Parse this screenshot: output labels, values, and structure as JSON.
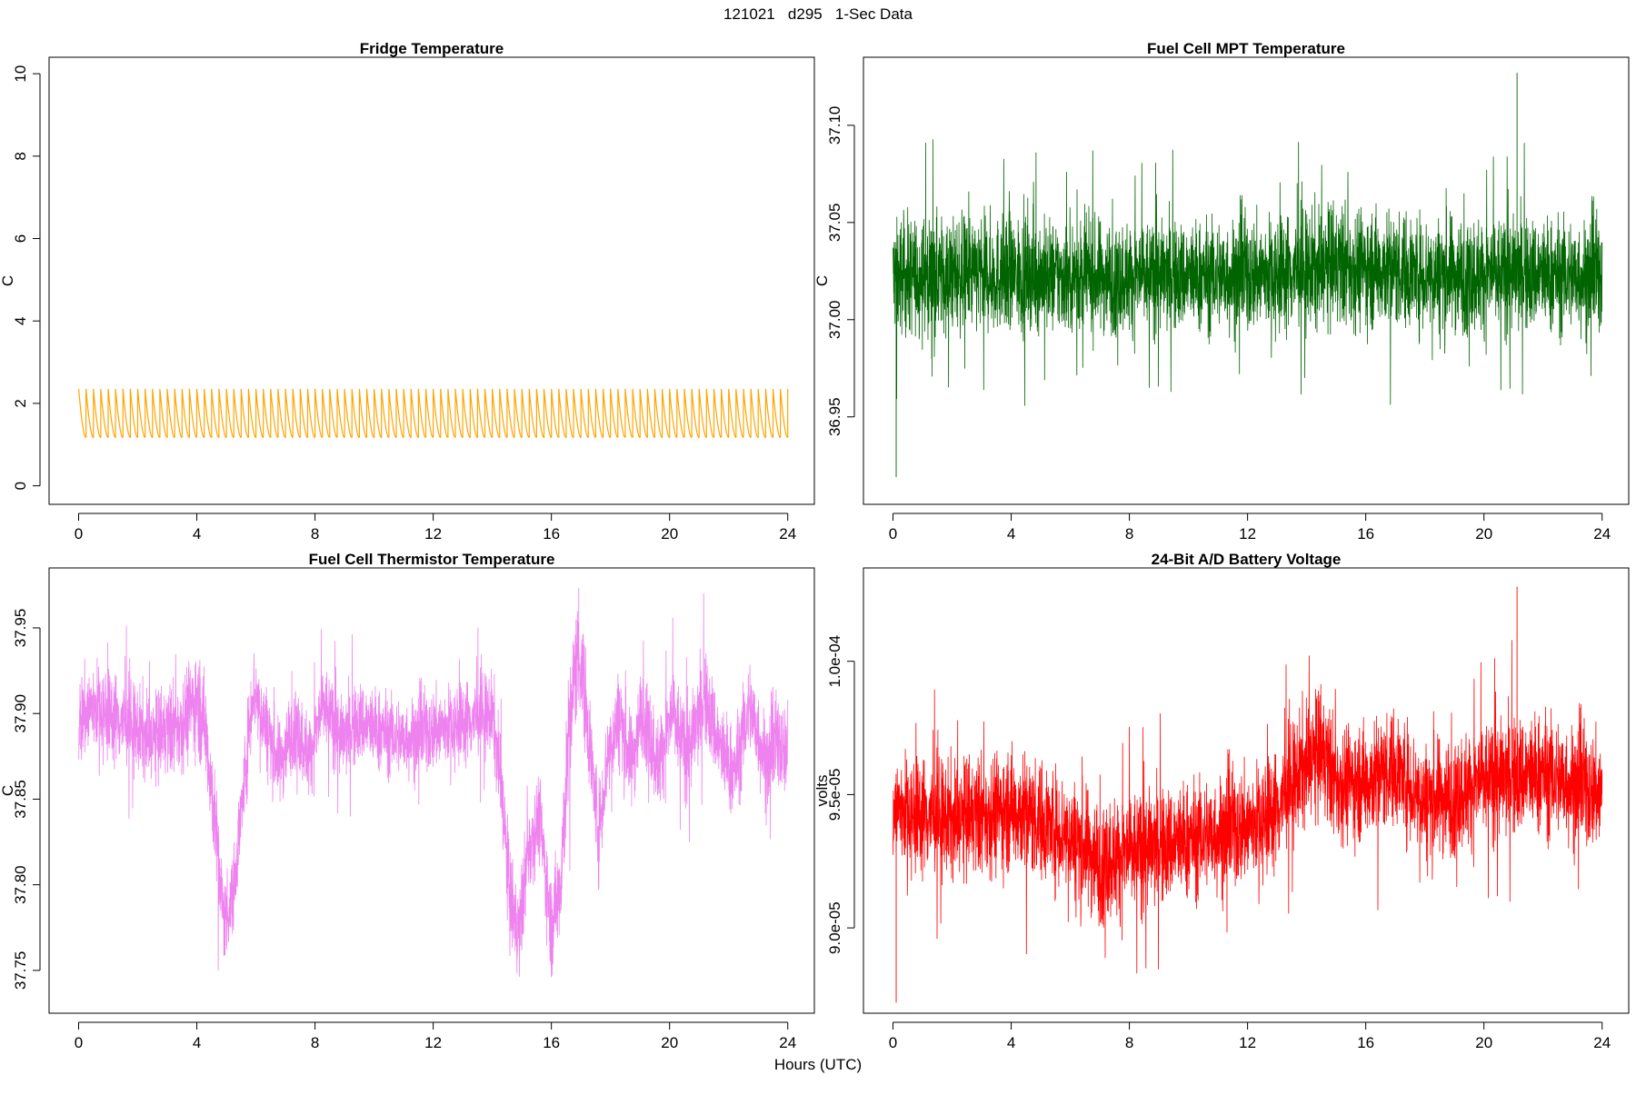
{
  "figure": {
    "title": "121021   d295   1-Sec Data",
    "xlabel": "Hours (UTC)"
  },
  "chart_data": [
    {
      "id": "fridge",
      "type": "line",
      "title": "Fridge Temperature",
      "xlabel": "",
      "ylabel": "C",
      "color": "#FFA500",
      "xlim": [
        -1.0,
        24.9
      ],
      "ylim": [
        -0.45,
        10.4
      ],
      "xticks": [
        0,
        4,
        8,
        12,
        16,
        20,
        24
      ],
      "xtick_labels": [
        "0",
        "4",
        "8",
        "12",
        "16",
        "20",
        "24"
      ],
      "yticks": [
        0,
        2,
        4,
        6,
        8,
        10
      ],
      "ytick_labels": [
        "0",
        "2",
        "4",
        "6",
        "8",
        "10"
      ],
      "pattern": "sawtooth",
      "cycle_hours": 0.25,
      "ymin_value": 1.18,
      "ymax_value": 2.35,
      "x_range": [
        0,
        24
      ]
    },
    {
      "id": "mpt",
      "type": "line",
      "title": "Fuel Cell MPT Temperature",
      "xlabel": "",
      "ylabel": "C",
      "color": "#006400",
      "xlim": [
        -1.0,
        24.9
      ],
      "ylim": [
        36.905,
        37.135
      ],
      "xticks": [
        0,
        4,
        8,
        12,
        16,
        20,
        24
      ],
      "xtick_labels": [
        "0",
        "4",
        "8",
        "12",
        "16",
        "20",
        "24"
      ],
      "yticks": [
        36.95,
        37.0,
        37.05,
        37.1
      ],
      "ytick_labels": [
        "36.95",
        "37.00",
        "37.05",
        "37.10"
      ],
      "pattern": "noise",
      "x": [
        0,
        2,
        4,
        6,
        8,
        10,
        12,
        14,
        15,
        16,
        18,
        20,
        22,
        24
      ],
      "mean": [
        37.022,
        37.023,
        37.023,
        37.022,
        37.022,
        37.022,
        37.023,
        37.025,
        37.028,
        37.027,
        37.024,
        37.023,
        37.023,
        37.022
      ],
      "amplitude": [
        0.028,
        0.027,
        0.027,
        0.026,
        0.026,
        0.026,
        0.027,
        0.028,
        0.029,
        0.028,
        0.027,
        0.027,
        0.027,
        0.027
      ],
      "extreme_high": 37.127,
      "extreme_low": 36.919,
      "x_range": [
        0,
        24
      ]
    },
    {
      "id": "thermistor",
      "type": "line",
      "title": "Fuel Cell Thermistor Temperature",
      "xlabel": "",
      "ylabel": "C",
      "color": "#EE82EE",
      "xlim": [
        -1.0,
        24.9
      ],
      "ylim": [
        37.725,
        37.985
      ],
      "xticks": [
        0,
        4,
        8,
        12,
        16,
        20,
        24
      ],
      "xtick_labels": [
        "0",
        "4",
        "8",
        "12",
        "16",
        "20",
        "24"
      ],
      "yticks": [
        37.75,
        37.8,
        37.85,
        37.9,
        37.95
      ],
      "ytick_labels": [
        "37.75",
        "37.80",
        "37.85",
        "37.90",
        "37.95"
      ],
      "pattern": "noise",
      "x": [
        0,
        0.5,
        1.5,
        2.5,
        3.5,
        4.0,
        4.3,
        4.6,
        4.9,
        5.2,
        5.6,
        5.9,
        6.3,
        6.8,
        7.3,
        7.8,
        8.3,
        8.9,
        9.5,
        10.2,
        11,
        12,
        13,
        14,
        14.3,
        14.6,
        14.9,
        15.2,
        15.6,
        16.0,
        16.3,
        16.6,
        16.9,
        17.2,
        17.6,
        17.9,
        18.3,
        18.7,
        19.1,
        19.6,
        20.1,
        20.6,
        21.2,
        21.7,
        22.2,
        22.7,
        23.3,
        23.7,
        24
      ],
      "mean": [
        37.895,
        37.905,
        37.895,
        37.885,
        37.895,
        37.91,
        37.89,
        37.84,
        37.78,
        37.79,
        37.86,
        37.915,
        37.895,
        37.87,
        37.895,
        37.875,
        37.905,
        37.885,
        37.895,
        37.89,
        37.885,
        37.89,
        37.895,
        37.9,
        37.86,
        37.79,
        37.77,
        37.82,
        37.84,
        37.775,
        37.8,
        37.89,
        37.94,
        37.9,
        37.83,
        37.875,
        37.9,
        37.87,
        37.905,
        37.87,
        37.9,
        37.875,
        37.91,
        37.88,
        37.865,
        37.905,
        37.87,
        37.885,
        37.875
      ],
      "amplitude": [
        0.025,
        0.025,
        0.024,
        0.024,
        0.025,
        0.028,
        0.028,
        0.027,
        0.024,
        0.022,
        0.022,
        0.024,
        0.022,
        0.022,
        0.022,
        0.022,
        0.022,
        0.022,
        0.022,
        0.022,
        0.021,
        0.022,
        0.022,
        0.022,
        0.026,
        0.027,
        0.026,
        0.024,
        0.024,
        0.026,
        0.03,
        0.034,
        0.034,
        0.028,
        0.025,
        0.025,
        0.025,
        0.025,
        0.025,
        0.025,
        0.025,
        0.025,
        0.025,
        0.025,
        0.025,
        0.025,
        0.025,
        0.025,
        0.025
      ],
      "x_range": [
        0,
        24
      ]
    },
    {
      "id": "battery",
      "type": "line",
      "title": "24-Bit A/D Battery Voltage",
      "xlabel": "",
      "ylabel": "volts",
      "color": "#FF0000",
      "xlim": [
        -1.0,
        24.9
      ],
      "ylim": [
        8.68e-05,
        0.0001035
      ],
      "xticks": [
        0,
        4,
        8,
        12,
        16,
        20,
        24
      ],
      "xtick_labels": [
        "0",
        "4",
        "8",
        "12",
        "16",
        "20",
        "24"
      ],
      "yticks": [
        9e-05,
        9.5e-05,
        0.0001
      ],
      "ytick_labels": [
        "9.0e-05",
        "9.5e-05",
        "1.0e-04"
      ],
      "pattern": "noise",
      "x": [
        0,
        2,
        4,
        6,
        7,
        8,
        9,
        10,
        12,
        13,
        14,
        14.5,
        15,
        16,
        17,
        18,
        19,
        20,
        22,
        24
      ],
      "mean": [
        9.45e-05,
        9.4e-05,
        9.45e-05,
        9.35e-05,
        9.25e-05,
        9.28e-05,
        9.3e-05,
        9.33e-05,
        9.38e-05,
        9.45e-05,
        9.62e-05,
        9.66e-05,
        9.55e-05,
        9.55e-05,
        9.6e-05,
        9.48e-05,
        9.5e-05,
        9.55e-05,
        9.58e-05,
        9.5e-05
      ],
      "amplitude": [
        2e-06,
        2e-06,
        2.1e-06,
        2e-06,
        2.1e-06,
        2.1e-06,
        2e-06,
        2e-06,
        2e-06,
        2e-06,
        2.1e-06,
        2.2e-06,
        2e-06,
        2e-06,
        2e-06,
        2e-06,
        2e-06,
        2e-06,
        2.1e-06,
        2e-06
      ],
      "extreme_high": 0.0001028,
      "extreme_low": 8.72e-05,
      "x_range": [
        0,
        24
      ]
    }
  ]
}
